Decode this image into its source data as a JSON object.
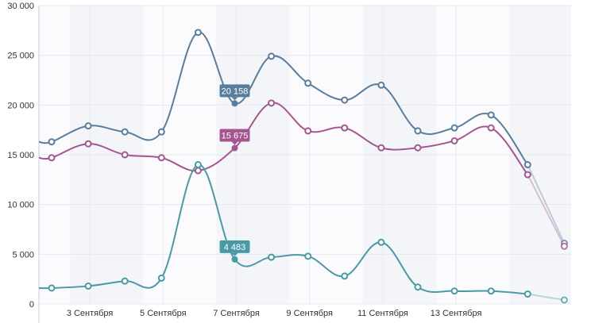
{
  "chart_data": {
    "type": "line",
    "x_tick_labels": [
      "3 Сентября",
      "5 Сентября",
      "7 Сентября",
      "9 Сентября",
      "11 Сентября",
      "13 Сентября"
    ],
    "y_tick_labels": [
      "0",
      "5 000",
      "10 000",
      "15 000",
      "20 000",
      "25 000",
      "30 000"
    ],
    "ylim": [
      0,
      30000
    ],
    "grid": true,
    "legend": "none",
    "series": [
      {
        "color": "#5b7d9c",
        "values": [
          16300,
          17900,
          17300,
          17300,
          27300,
          20158,
          24900,
          22200,
          20500,
          22000,
          17400,
          17700,
          19000,
          14000,
          6100
        ],
        "highlight_index": 5,
        "highlight_label": "20 158"
      },
      {
        "color": "#a5568f",
        "values": [
          14700,
          16100,
          15000,
          14700,
          13400,
          15675,
          20200,
          17400,
          17700,
          15700,
          15700,
          16400,
          17700,
          13000,
          5800
        ],
        "highlight_index": 5,
        "highlight_label": "15 675"
      },
      {
        "color": "#4a9aa5",
        "values": [
          1600,
          1800,
          2300,
          2600,
          14000,
          4483,
          4700,
          4800,
          2800,
          6200,
          1700,
          1300,
          1300,
          1000,
          400
        ],
        "highlight_index": 5,
        "highlight_label": "4 483"
      }
    ]
  }
}
